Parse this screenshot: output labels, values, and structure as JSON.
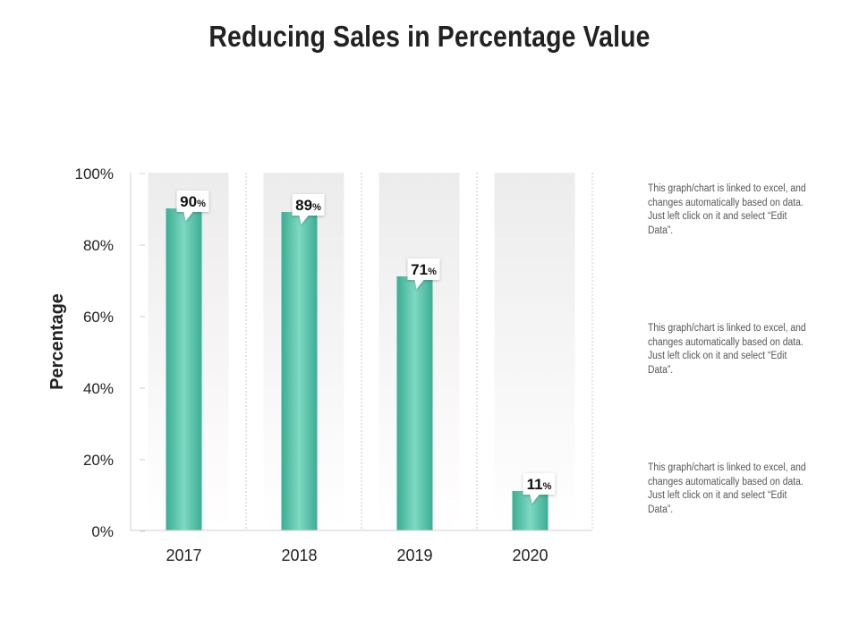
{
  "chart_data": {
    "type": "bar",
    "title": "Reducing Sales in Percentage Value",
    "xlabel": "",
    "ylabel": "Percentage",
    "categories": [
      "2017",
      "2018",
      "2019",
      "2020"
    ],
    "values": [
      90,
      89,
      71,
      11
    ],
    "value_labels": [
      {
        "num": "90",
        "unit": "%"
      },
      {
        "num": "89",
        "unit": "%"
      },
      {
        "num": "71",
        "unit": "%"
      },
      {
        "num": "11",
        "unit": "%"
      }
    ],
    "ylim": [
      0,
      100
    ],
    "yticks": [
      0,
      20,
      40,
      60,
      80,
      100
    ],
    "ytick_labels": [
      "0%",
      "20%",
      "40%",
      "60%",
      "80%",
      "100%"
    ],
    "bar_color": "#4dbfa6",
    "bar_highlight": "#7fd8c2",
    "column_bg": "#efefef"
  },
  "notes": [
    "This graph/chart is linked to excel, and changes automatically based on data. Just left click on it and select “Edit Data”.",
    "This graph/chart is linked to excel, and changes automatically based on data. Just left click on it and select “Edit Data”.",
    "This graph/chart is linked to excel, and changes automatically based on data. Just left click on it and select “Edit Data”."
  ]
}
